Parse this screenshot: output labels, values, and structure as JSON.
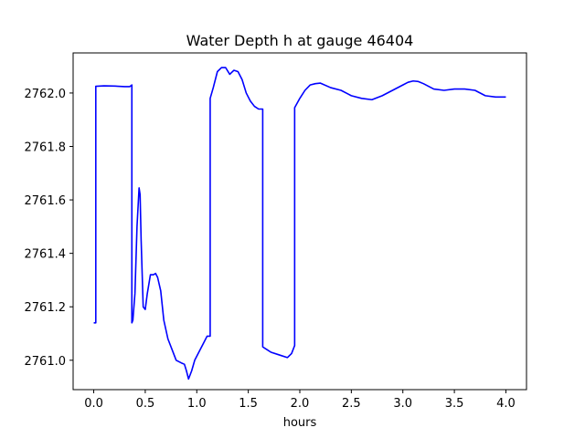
{
  "chart_data": {
    "type": "line",
    "title": "Water Depth h at gauge 46404",
    "xlabel": "hours",
    "ylabel": "",
    "xlim": [
      -0.2,
      4.2
    ],
    "ylim": [
      2760.89,
      2762.15
    ],
    "xticks": [
      0.0,
      0.5,
      1.0,
      1.5,
      2.0,
      2.5,
      3.0,
      3.5,
      4.0
    ],
    "xtick_labels": [
      "0.0",
      "0.5",
      "1.0",
      "1.5",
      "2.0",
      "2.5",
      "3.0",
      "3.5",
      "4.0"
    ],
    "yticks": [
      2761.0,
      2761.2,
      2761.4,
      2761.6,
      2761.8,
      2762.0
    ],
    "ytick_labels": [
      "2761.0",
      "2761.2",
      "2761.4",
      "2761.6",
      "2761.8",
      "2762.0"
    ],
    "grid": false,
    "line_color": "#0000ff",
    "series": [
      {
        "x": [
          0.0,
          0.02,
          0.02,
          0.1,
          0.2,
          0.3,
          0.35,
          0.37,
          0.37,
          0.38,
          0.4,
          0.42,
          0.44,
          0.45,
          0.46,
          0.48,
          0.5,
          0.52,
          0.55,
          0.58,
          0.6,
          0.62,
          0.65,
          0.68,
          0.72,
          0.76,
          0.8,
          0.85,
          0.88,
          0.9,
          0.92,
          0.95,
          0.98,
          1.02,
          1.06,
          1.1,
          1.13,
          1.13,
          1.16,
          1.2,
          1.24,
          1.28,
          1.32,
          1.36,
          1.4,
          1.44,
          1.48,
          1.52,
          1.56,
          1.6,
          1.64,
          1.64,
          1.68,
          1.72,
          1.8,
          1.88,
          1.92,
          1.95,
          1.95,
          2.0,
          2.05,
          2.1,
          2.15,
          2.2,
          2.3,
          2.4,
          2.5,
          2.6,
          2.7,
          2.8,
          2.9,
          3.0,
          3.05,
          3.1,
          3.15,
          3.2,
          3.3,
          3.4,
          3.5,
          3.6,
          3.7,
          3.8,
          3.9,
          3.95,
          4.0
        ],
        "y": [
          2761.14,
          2761.14,
          2762.025,
          2762.027,
          2762.026,
          2762.024,
          2762.024,
          2762.03,
          2761.14,
          2761.15,
          2761.25,
          2761.5,
          2761.645,
          2761.62,
          2761.45,
          2761.2,
          2761.19,
          2761.25,
          2761.32,
          2761.32,
          2761.325,
          2761.31,
          2761.26,
          2761.15,
          2761.08,
          2761.04,
          2761.0,
          2760.99,
          2760.985,
          2760.96,
          2760.93,
          2760.96,
          2761.0,
          2761.03,
          2761.06,
          2761.09,
          2761.09,
          2761.98,
          2762.02,
          2762.08,
          2762.095,
          2762.095,
          2762.07,
          2762.085,
          2762.08,
          2762.05,
          2762.0,
          2761.97,
          2761.95,
          2761.94,
          2761.94,
          2761.05,
          2761.04,
          2761.03,
          2761.02,
          2761.01,
          2761.025,
          2761.055,
          2761.945,
          2761.98,
          2762.01,
          2762.03,
          2762.035,
          2762.037,
          2762.02,
          2762.01,
          2761.99,
          2761.98,
          2761.975,
          2761.99,
          2762.01,
          2762.03,
          2762.04,
          2762.045,
          2762.043,
          2762.035,
          2762.015,
          2762.01,
          2762.015,
          2762.015,
          2762.01,
          2761.99,
          2761.985,
          2761.985,
          2761.985
        ]
      }
    ]
  }
}
